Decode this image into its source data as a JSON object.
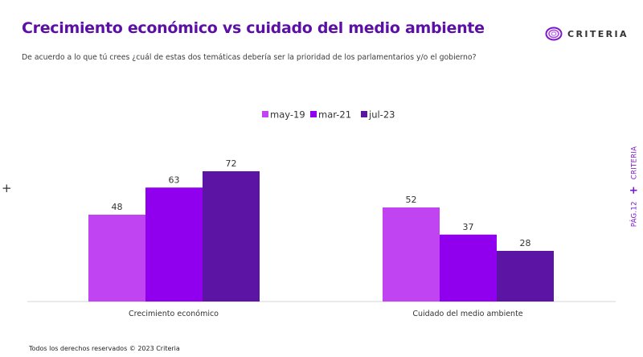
{
  "header": {
    "title": "Crecimiento económico vs cuidado del medio ambiente",
    "subtitle": "De acuerdo a lo que tú crees ¿cuál de estas dos temáticas debería ser la prioridad de los parlamentarios y/o el gobierno?",
    "logo_text": "CRITERIA"
  },
  "side": {
    "page_label": "PÁG.12",
    "brand": "CRITERIA",
    "plus": "+"
  },
  "decor": {
    "left_plus": "+"
  },
  "footer": {
    "text": "Todos los derechos reservados © 2023 Criteria"
  },
  "colors": {
    "title": "#5b0fa6",
    "may19": "#c044f1",
    "mar21": "#9000ef",
    "jul23": "#5c14a5",
    "logo": "#7b17c9"
  },
  "chart_data": {
    "type": "bar",
    "title": "Crecimiento económico vs cuidado del medio ambiente",
    "xlabel": "",
    "ylabel": "",
    "categories": [
      "Crecimiento económico",
      "Cuidado del medio ambiente"
    ],
    "series": [
      {
        "name": "may-19",
        "values": [
          48,
          52
        ],
        "color": "#c044f1"
      },
      {
        "name": "mar-21",
        "values": [
          63,
          37
        ],
        "color": "#9000ef"
      },
      {
        "name": "jul-23",
        "values": [
          72,
          28
        ],
        "color": "#5c14a5"
      }
    ],
    "ylim": [
      0,
      100
    ],
    "grid": false,
    "legend": "top-center",
    "data_labels": true
  }
}
